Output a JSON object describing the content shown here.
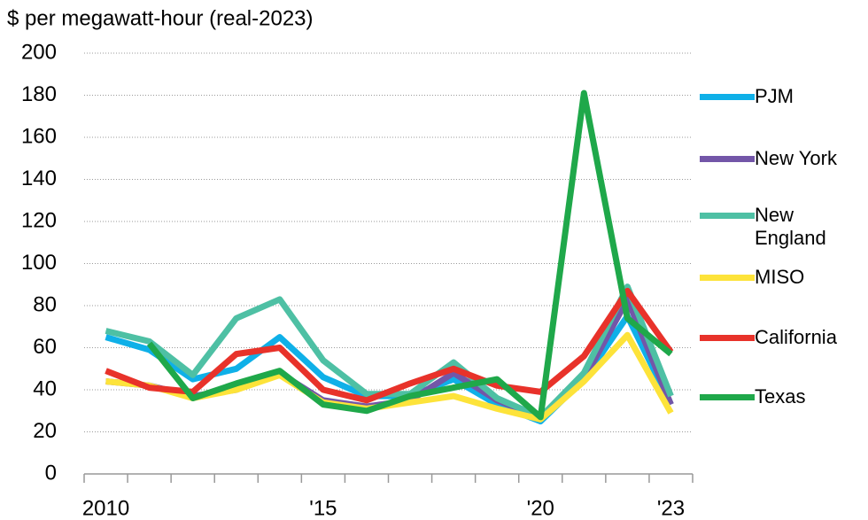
{
  "chart_data": {
    "type": "line",
    "title": "$ per megawatt-hour (real-2023)",
    "categories": [
      "2010",
      null,
      null,
      null,
      null,
      "'15",
      null,
      null,
      null,
      null,
      "'20",
      null,
      null,
      "'23"
    ],
    "ylim": [
      0,
      200
    ],
    "yticks": [
      0,
      20,
      40,
      60,
      80,
      100,
      120,
      140,
      160,
      180,
      200
    ],
    "grid": true,
    "series": [
      {
        "name": "PJM",
        "color": "#0fb0e8",
        "values": [
          65,
          59,
          45,
          50,
          65,
          46,
          37,
          37,
          45,
          33,
          25,
          45,
          75,
          33
        ]
      },
      {
        "name": "New York",
        "color": "#7356a8",
        "values": [
          44,
          42,
          37,
          40,
          48,
          35,
          32,
          35,
          48,
          35,
          27,
          45,
          83,
          33
        ]
      },
      {
        "name": "New England",
        "color": "#4ec0a4",
        "values": [
          68,
          63,
          47,
          74,
          83,
          54,
          38,
          38,
          53,
          36,
          27,
          48,
          89,
          37
        ]
      },
      {
        "name": "MISO",
        "color": "#fde33a",
        "values": [
          44,
          42,
          36,
          40,
          47,
          34,
          31,
          34,
          37,
          31,
          26,
          44,
          66,
          29
        ]
      },
      {
        "name": "California",
        "color": "#e8322a",
        "values": [
          49,
          41,
          39,
          57,
          60,
          40,
          35,
          43,
          50,
          42,
          39,
          56,
          87,
          58
        ]
      },
      {
        "name": "Texas",
        "color": "#1fa84a",
        "values": [
          null,
          62,
          36,
          43,
          49,
          33,
          30,
          37,
          41,
          45,
          27,
          181,
          74,
          57
        ]
      }
    ]
  }
}
